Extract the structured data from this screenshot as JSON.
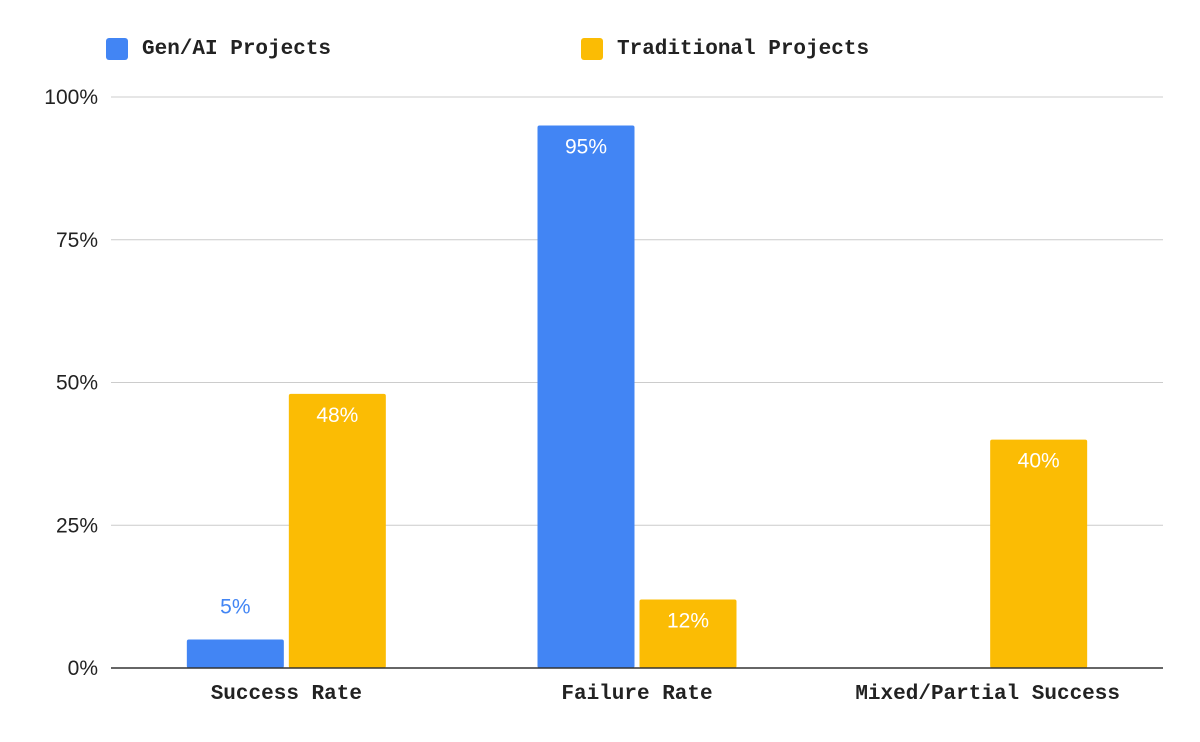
{
  "chart_data": {
    "type": "bar",
    "categories": [
      "Success Rate",
      "Failure Rate",
      "Mixed/Partial Success"
    ],
    "series": [
      {
        "name": "Gen/AI Projects",
        "color": "#4285f4",
        "values": [
          5,
          95,
          null
        ],
        "labels": [
          "5%",
          "95%",
          ""
        ]
      },
      {
        "name": "Traditional Projects",
        "color": "#fbbc04",
        "values": [
          48,
          12,
          40
        ],
        "labels": [
          "48%",
          "12%",
          "40%"
        ]
      }
    ],
    "ylim": [
      0,
      100
    ],
    "yticks": [
      0,
      25,
      50,
      75,
      100
    ],
    "ytick_labels": [
      "0%",
      "25%",
      "50%",
      "75%",
      "100%"
    ],
    "grid": true,
    "legend_position": "top-left",
    "title": "",
    "xlabel": "",
    "ylabel": ""
  }
}
